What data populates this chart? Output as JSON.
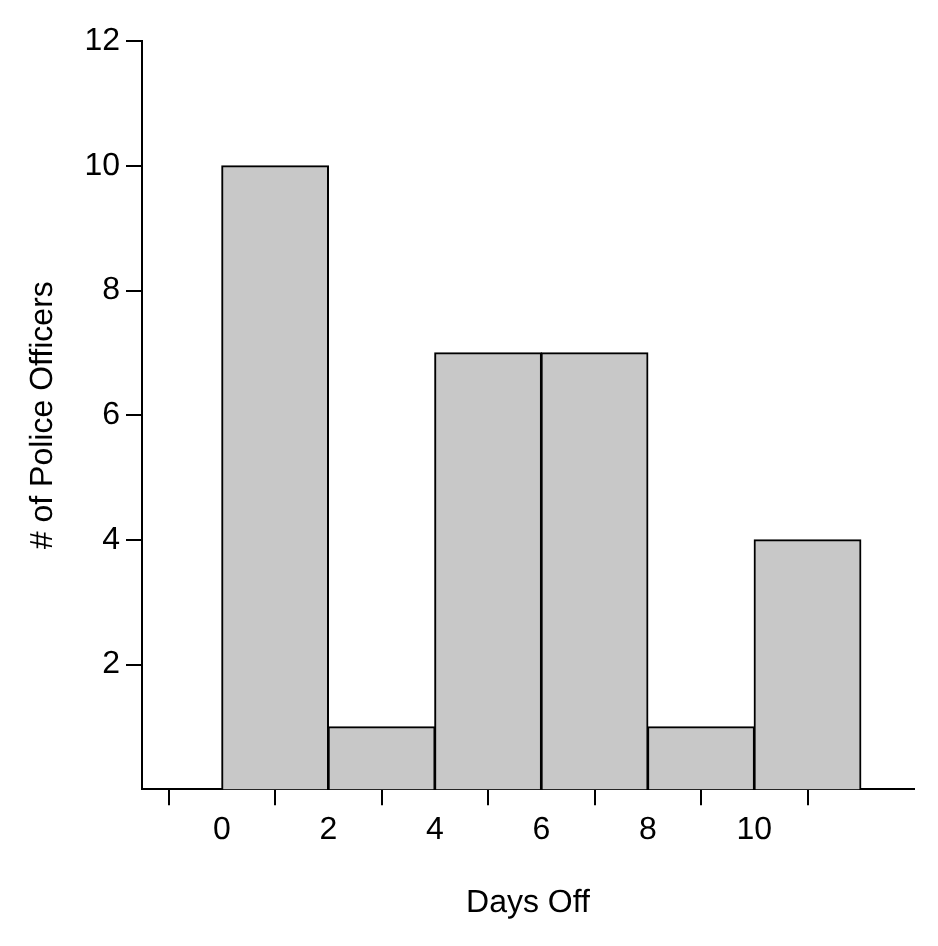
{
  "chart_data": {
    "type": "histogram",
    "xlabel": "Days Off",
    "ylabel": "# of Police Officers",
    "bins": [
      0,
      2,
      4,
      6,
      8,
      10,
      12
    ],
    "values": [
      10,
      1,
      7,
      7,
      1,
      4
    ],
    "color": "#c8c8c8",
    "xlim": [
      -1.5,
      13
    ],
    "xticks": [
      0,
      2,
      4,
      6,
      8,
      10
    ],
    "ylim": [
      0,
      12
    ],
    "yticks": [
      2,
      4,
      6,
      8,
      10,
      12
    ],
    "grid": false,
    "legend": false
  }
}
